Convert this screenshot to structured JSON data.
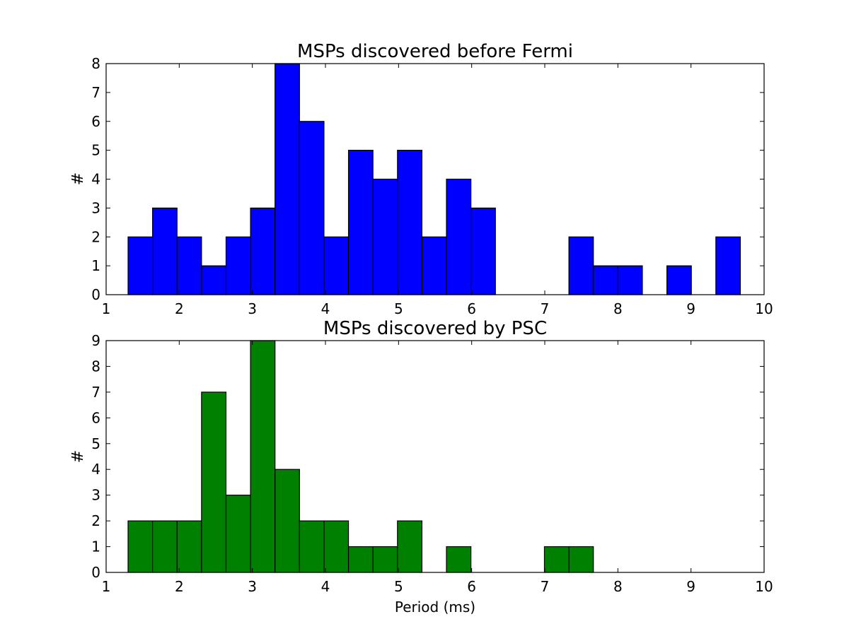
{
  "chart_data": [
    {
      "type": "bar",
      "title": "MSPs discovered before Fermi",
      "xlabel": "",
      "ylabel": "#",
      "xlim": [
        1,
        10
      ],
      "ylim": [
        0,
        8
      ],
      "xticks": [
        "1",
        "2",
        "3",
        "4",
        "5",
        "6",
        "7",
        "8",
        "9",
        "10"
      ],
      "yticks": [
        "0",
        "1",
        "2",
        "3",
        "4",
        "5",
        "6",
        "7",
        "8"
      ],
      "bin_start": 1.3,
      "bin_width": 0.335,
      "values": [
        2,
        3,
        2,
        1,
        2,
        3,
        8,
        6,
        2,
        5,
        4,
        5,
        2,
        4,
        3,
        0,
        0,
        0,
        2,
        1,
        1,
        0,
        1,
        0,
        2
      ],
      "color": "#0000ff",
      "grid": false
    },
    {
      "type": "bar",
      "title": "MSPs discovered by PSC",
      "xlabel": "Period (ms)",
      "ylabel": "#",
      "xlim": [
        1,
        10
      ],
      "ylim": [
        0,
        9
      ],
      "xticks": [
        "1",
        "2",
        "3",
        "4",
        "5",
        "6",
        "7",
        "8",
        "9",
        "10"
      ],
      "yticks": [
        "0",
        "1",
        "2",
        "3",
        "4",
        "5",
        "6",
        "7",
        "8",
        "9"
      ],
      "bin_start": 1.3,
      "bin_width": 0.335,
      "values": [
        2,
        2,
        2,
        7,
        3,
        9,
        4,
        2,
        2,
        1,
        1,
        2,
        0,
        1,
        0,
        0,
        0,
        1,
        1,
        0,
        0,
        0,
        0,
        0,
        0
      ],
      "color": "#008000",
      "grid": false
    }
  ]
}
